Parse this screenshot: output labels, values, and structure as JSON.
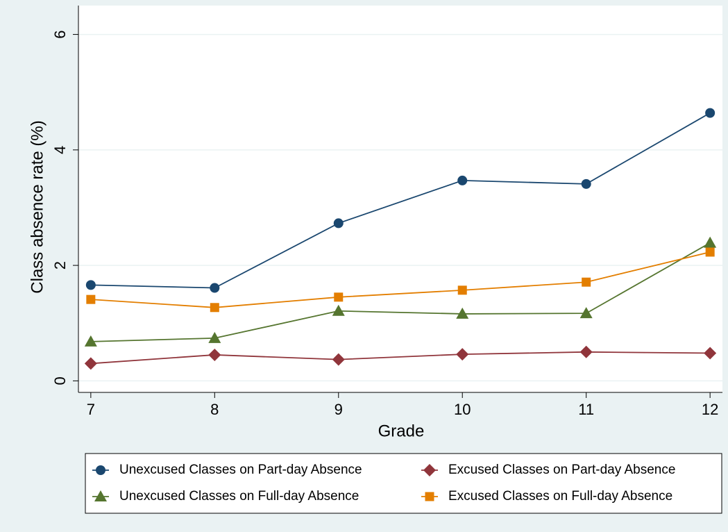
{
  "chart_data": {
    "type": "line",
    "x_label": "Grade",
    "y_label": "Class absence rate (%)",
    "x": [
      7,
      8,
      9,
      10,
      11,
      12
    ],
    "xlim": [
      6.9,
      12.1
    ],
    "xticks": [
      7,
      8,
      9,
      10,
      11,
      12
    ],
    "ylim": [
      -0.2,
      6.5
    ],
    "yticks": [
      0,
      2,
      4,
      6
    ],
    "grid": true,
    "series": [
      {
        "name": "Unexcused Classes on Part-day Absence",
        "color": "#1a476f",
        "marker": "circle",
        "values": [
          1.66,
          1.61,
          2.73,
          3.47,
          3.41,
          4.64
        ]
      },
      {
        "name": "Excused Classes on Part-day Absence",
        "color": "#90353b",
        "marker": "diamond",
        "values": [
          0.3,
          0.45,
          0.37,
          0.46,
          0.5,
          0.48
        ]
      },
      {
        "name": "Unexcused Classes on Full-day Absence",
        "color": "#55752f",
        "marker": "triangle",
        "values": [
          0.68,
          0.74,
          1.21,
          1.16,
          1.17,
          2.39
        ]
      },
      {
        "name": "Excused Classes on Full-day Absence",
        "color": "#e37e00",
        "marker": "square",
        "values": [
          1.41,
          1.27,
          1.45,
          1.57,
          1.71,
          2.23
        ]
      }
    ]
  }
}
